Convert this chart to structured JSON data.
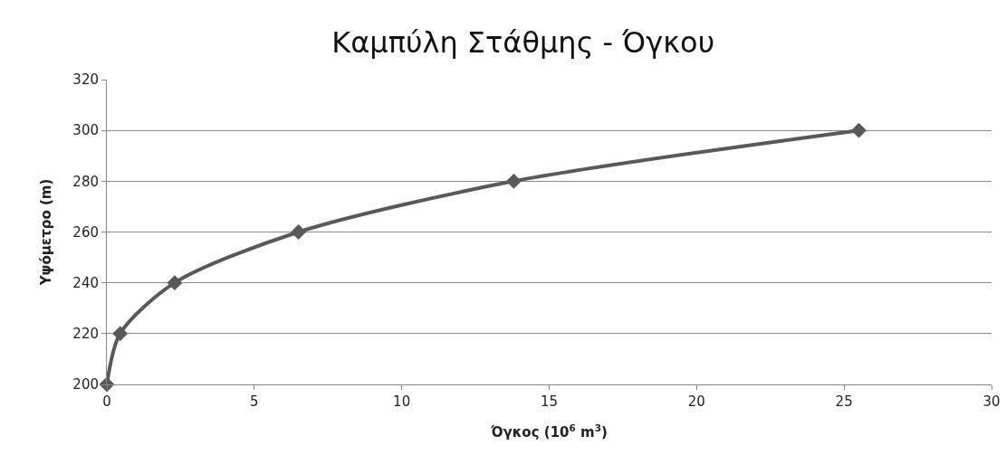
{
  "chart_data": {
    "type": "line",
    "title": "Καμπύλη Στάθμης - Όγκου",
    "xlabel": "Όγκος (10$^{6}$ m$^{3}$)",
    "ylabel": "Υψόμετρο (m)",
    "x": [
      0,
      0.45,
      2.3,
      6.5,
      13.8,
      25.5
    ],
    "series": [
      {
        "color": "#595959",
        "values": [
          200,
          220,
          240,
          260,
          280,
          300
        ]
      }
    ],
    "xlim": [
      0,
      30
    ],
    "xticks": [
      0,
      5,
      10,
      15,
      20,
      25,
      30
    ],
    "ylim": [
      200,
      320
    ],
    "yticks": [
      200,
      220,
      240,
      260,
      280,
      300,
      320
    ],
    "grid": "y",
    "marker": "diamond",
    "line_style": "solid"
  }
}
